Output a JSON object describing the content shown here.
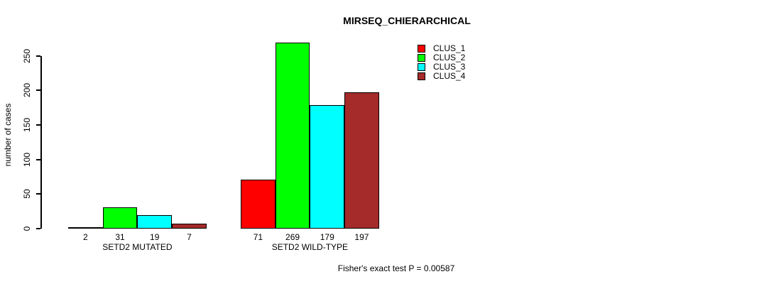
{
  "title": "MIRSEQ_CHIERARCHICAL",
  "y_axis": {
    "label": "number of cases",
    "ticks": [
      0,
      50,
      100,
      150,
      200,
      250
    ]
  },
  "footer": "Fisher's exact test P = 0.00587",
  "chart_data": {
    "type": "bar",
    "title": "MIRSEQ_CHIERARCHICAL",
    "xlabel": "",
    "ylabel": "number of cases",
    "ylim": [
      0,
      250
    ],
    "grid": false,
    "legend_position": "top-right",
    "bar_value_labels_shown": true,
    "categories": [
      "SETD2 MUTATED",
      "SETD2 WILD-TYPE"
    ],
    "series": [
      {
        "name": "CLUS_1",
        "color": "#FF0000",
        "values": [
          2,
          71
        ]
      },
      {
        "name": "CLUS_2",
        "color": "#00FF00",
        "values": [
          31,
          269
        ]
      },
      {
        "name": "CLUS_3",
        "color": "#00FFFF",
        "values": [
          19,
          179
        ]
      },
      {
        "name": "CLUS_4",
        "color": "#A52A2A",
        "values": [
          7,
          197
        ]
      }
    ],
    "annotation": "Fisher's exact test P = 0.00587"
  }
}
